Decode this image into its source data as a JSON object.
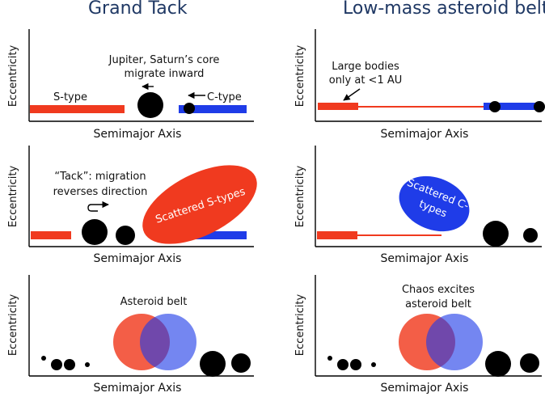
{
  "titles": {
    "left": "Grand Tack",
    "right": "Low-mass asteroid belt"
  },
  "axis": {
    "y_label": "Eccentricity",
    "x_label": "Semimajor Axis"
  },
  "panels": {
    "p1": {
      "note_line1": "Jupiter, Saturn’s core",
      "note_line2": "migrate inward",
      "s_type": "S-type",
      "c_type": "C-type"
    },
    "p2": {
      "note_line1": "Large bodies",
      "note_line2": "only at <1 AU"
    },
    "p3": {
      "note_line1": "“Tack”: migration",
      "note_line2": "reverses direction",
      "ellipse_label": "Scattered S-types"
    },
    "p4": {
      "ellipse_line1": "Scattered C-",
      "ellipse_line2": "types"
    },
    "p5": {
      "note": "Asteroid belt"
    },
    "p6": {
      "note_line1": "Chaos excites",
      "note_line2": "asteroid belt"
    }
  },
  "colors": {
    "s_type": "#f03a1f",
    "c_type": "#1f3ce8",
    "planet": "#000000",
    "title": "#1f3864"
  }
}
